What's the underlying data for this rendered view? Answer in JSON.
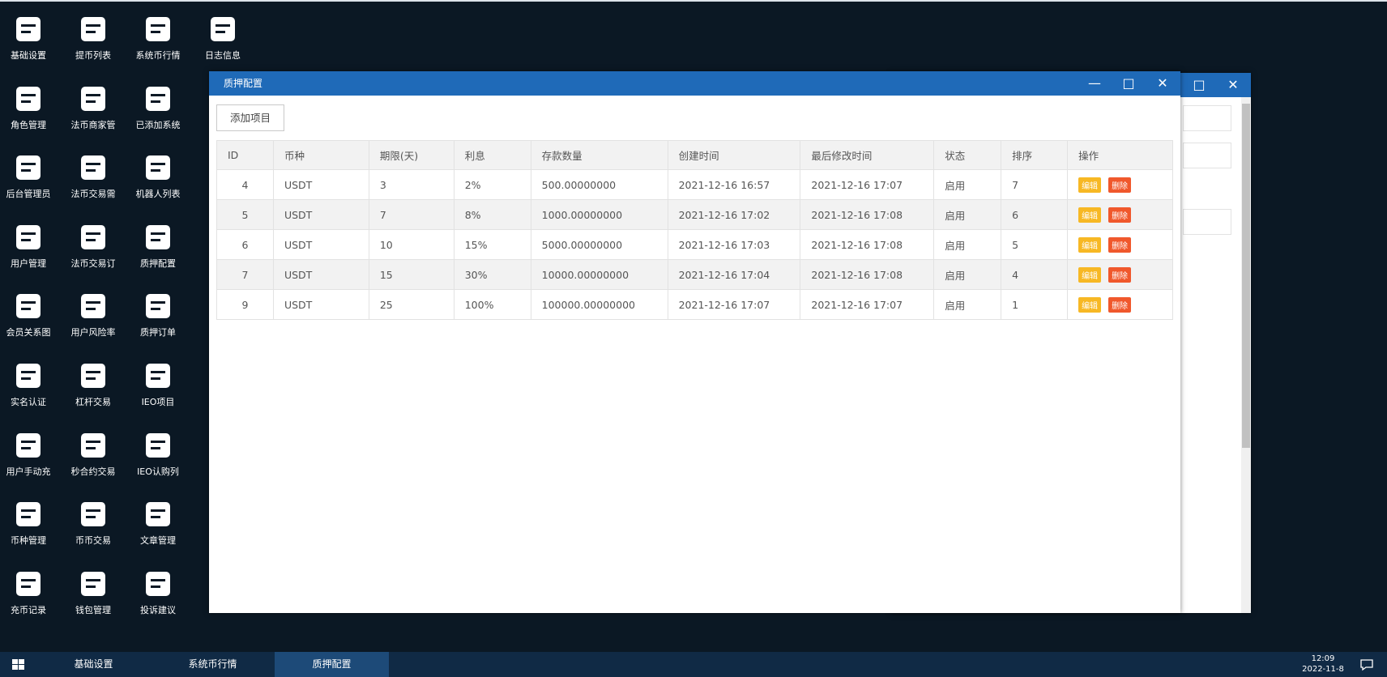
{
  "desktop_icons": [
    {
      "label": "基础设置"
    },
    {
      "label": "角色管理"
    },
    {
      "label": "后台管理员"
    },
    {
      "label": "用户管理"
    },
    {
      "label": "会员关系图"
    },
    {
      "label": "实名认证"
    },
    {
      "label": "用户手动充"
    },
    {
      "label": "币种管理"
    },
    {
      "label": "充币记录"
    },
    {
      "label": "提币列表"
    },
    {
      "label": "法币商家管"
    },
    {
      "label": "法币交易需"
    },
    {
      "label": "法币交易订"
    },
    {
      "label": "用户风险率"
    },
    {
      "label": "杠杆交易"
    },
    {
      "label": "秒合约交易"
    },
    {
      "label": "币币交易"
    },
    {
      "label": "钱包管理"
    },
    {
      "label": "系统币行情"
    },
    {
      "label": "已添加系统"
    },
    {
      "label": "机器人列表"
    },
    {
      "label": "质押配置"
    },
    {
      "label": "质押订单"
    },
    {
      "label": "IEO项目"
    },
    {
      "label": "IEO认购列"
    },
    {
      "label": "文章管理"
    },
    {
      "label": "投诉建议"
    },
    {
      "label": "日志信息"
    }
  ],
  "window": {
    "title": "质押配置",
    "add_button": "添加项目",
    "table": {
      "headers": [
        "ID",
        "币种",
        "期限(天)",
        "利息",
        "存款数量",
        "创建时间",
        "最后修改时间",
        "状态",
        "排序",
        "操作"
      ],
      "rows": [
        [
          "4",
          "USDT",
          "3",
          "2%",
          "500.00000000",
          "2021-12-16 16:57",
          "2021-12-16 17:07",
          "启用",
          "7"
        ],
        [
          "5",
          "USDT",
          "7",
          "8%",
          "1000.00000000",
          "2021-12-16 17:02",
          "2021-12-16 17:08",
          "启用",
          "6"
        ],
        [
          "6",
          "USDT",
          "10",
          "15%",
          "5000.00000000",
          "2021-12-16 17:03",
          "2021-12-16 17:08",
          "启用",
          "5"
        ],
        [
          "7",
          "USDT",
          "15",
          "30%",
          "10000.00000000",
          "2021-12-16 17:04",
          "2021-12-16 17:08",
          "启用",
          "4"
        ],
        [
          "9",
          "USDT",
          "25",
          "100%",
          "100000.00000000",
          "2021-12-16 17:07",
          "2021-12-16 17:07",
          "启用",
          "1"
        ]
      ]
    },
    "actions": [
      "编辑",
      "删除"
    ]
  },
  "taskbar": {
    "items": [
      {
        "label": "基础设置"
      },
      {
        "label": "系统币行情"
      },
      {
        "label": "质押配置",
        "active": true
      }
    ]
  },
  "clock": {
    "time": "12:09",
    "date": "2022-11-8"
  }
}
